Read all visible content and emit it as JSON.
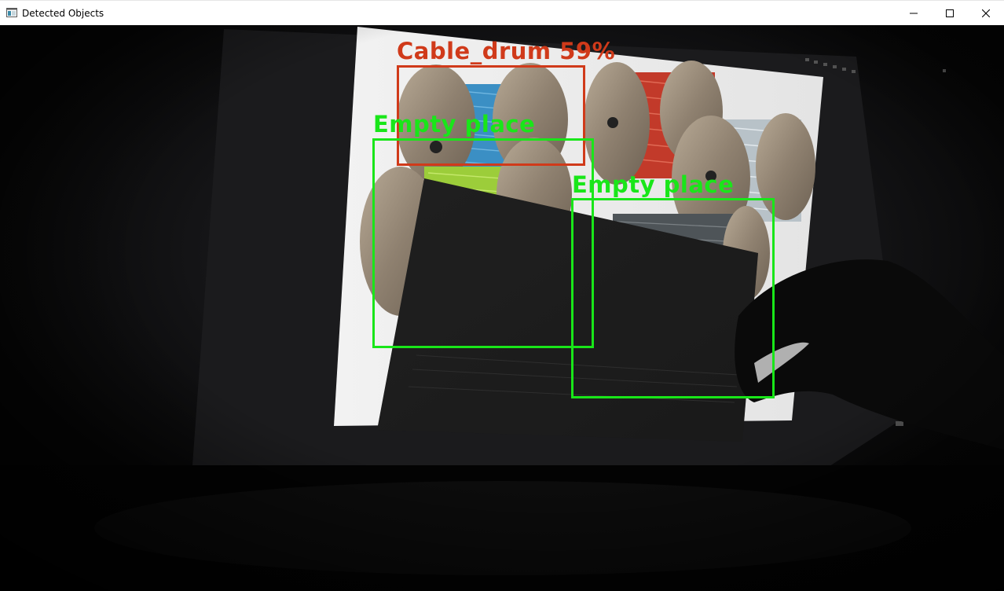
{
  "window": {
    "title": "Detected Objects",
    "controls": {
      "minimize_icon": "minimize-icon",
      "maximize_icon": "maximize-icon",
      "close_icon": "close-icon"
    }
  },
  "detections": [
    {
      "label": "Cable_drum 59%",
      "color": "#d03a1a"
    },
    {
      "label": "Empty place",
      "color": "#19e619"
    },
    {
      "label": "Empty place",
      "color": "#19e619"
    }
  ],
  "colors": {
    "cable_drum_box": "#d03a1a",
    "empty_place_box": "#19e619",
    "titlebar_bg": "#ffffff"
  }
}
